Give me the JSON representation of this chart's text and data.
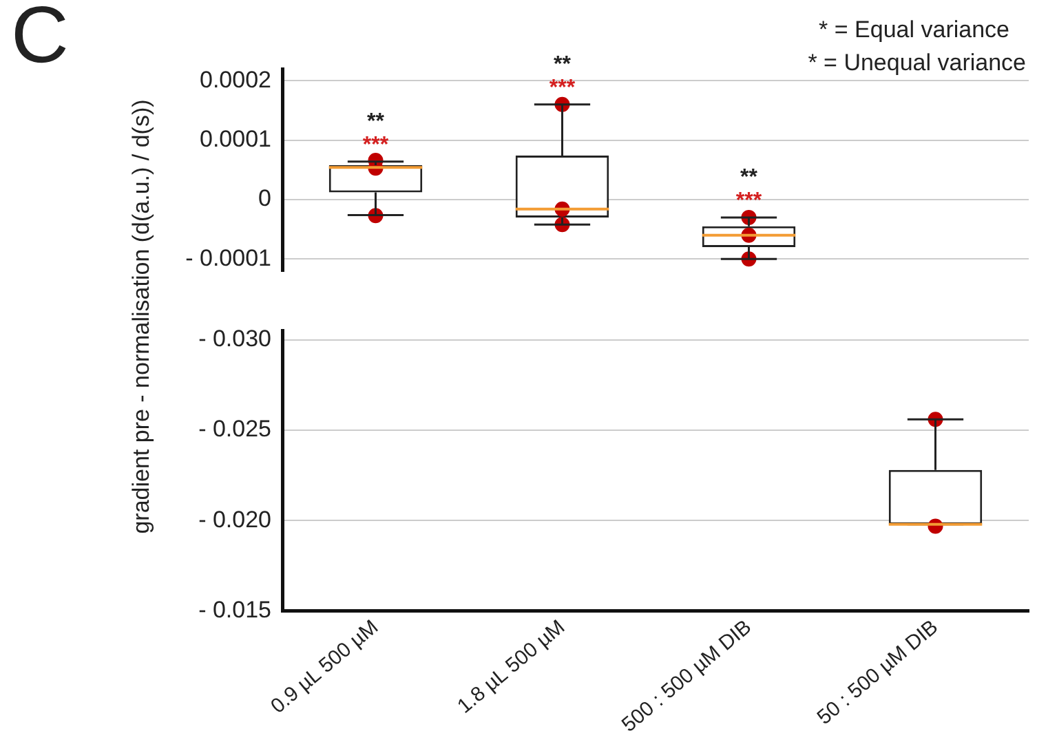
{
  "chart_data": [
    {
      "type": "box",
      "ylabel": "gradient pre - normalisation (d(a.u.) / d(s))",
      "categories": [
        "0.9 µL 500 µM",
        "1.8 µL 500 µM",
        "500 : 500 µM DIB",
        "50 : 500 µM DIB"
      ],
      "series": [
        {
          "type": "box",
          "color": "#222222",
          "boxes": [
            {
              "low": -2.6e-05,
              "q1": 1.2e-05,
              "median": 5.4e-05,
              "q3": 5.8e-05,
              "high": 6.4e-05
            },
            {
              "low": -4.2e-05,
              "q1": -3e-05,
              "median": -1.6e-05,
              "q3": 7.4e-05,
              "high": 0.00016
            },
            {
              "low": -0.0001,
              "q1": -8e-05,
              "median": -6e-05,
              "q3": -4.5e-05,
              "high": -3e-05
            },
            null
          ]
        },
        {
          "type": "scatter",
          "color": "#c00000",
          "x": [
            "0.9 µL 500 µM",
            "0.9 µL 500 µM",
            "0.9 µL 500 µM",
            "1.8 µL 500 µM",
            "1.8 µL 500 µM",
            "1.8 µL 500 µM",
            "500 : 500 µM DIB",
            "500 : 500 µM DIB",
            "500 : 500 µM DIB"
          ],
          "values": [
            6.6e-05,
            5.3e-05,
            -2.7e-05,
            0.00016,
            -1.6e-05,
            -4.2e-05,
            -3e-05,
            -6e-05,
            -0.0001
          ]
        }
      ],
      "ylim": [
        -0.00012,
        0.00022
      ],
      "yticks": [
        {
          "value": 0.0002,
          "label": "0.0002"
        },
        {
          "value": 0.0001,
          "label": "0.0001"
        },
        0,
        {
          "value": -0.0001,
          "label": "- 0.0001"
        }
      ],
      "grid": "y",
      "tick_labels": "y",
      "annotations": [
        "C",
        "* = Equal variance",
        "* = Unequal variance",
        "**",
        "***",
        "**",
        "***",
        "**",
        "***"
      ]
    },
    {
      "type": "box",
      "categories": [
        "0.9 µL 500 µM",
        "1.8 µL 500 µM",
        "500 : 500 µM DIB",
        "50 : 500 µM DIB"
      ],
      "series": [
        {
          "type": "box",
          "color": "#222222",
          "boxes": [
            null,
            null,
            null,
            {
              "low": -0.0256,
              "q1": -0.0228,
              "median": -0.0198,
              "q3": -0.0198,
              "high": -0.0198
            }
          ]
        },
        {
          "type": "scatter",
          "color": "#c00000",
          "x": [
            "50 : 500 µM DIB",
            "50 : 500 µM DIB"
          ],
          "values": [
            -0.0256,
            -0.0197
          ]
        }
      ],
      "ylim": [
        -0.015,
        -0.0305
      ],
      "yticks": [
        {
          "value": -0.03,
          "label": "- 0.030"
        },
        {
          "value": -0.025,
          "label": "- 0.025"
        },
        {
          "value": -0.02,
          "label": "- 0.020"
        },
        {
          "value": -0.015,
          "label": "- 0.015"
        }
      ],
      "grid": "y"
    }
  ]
}
